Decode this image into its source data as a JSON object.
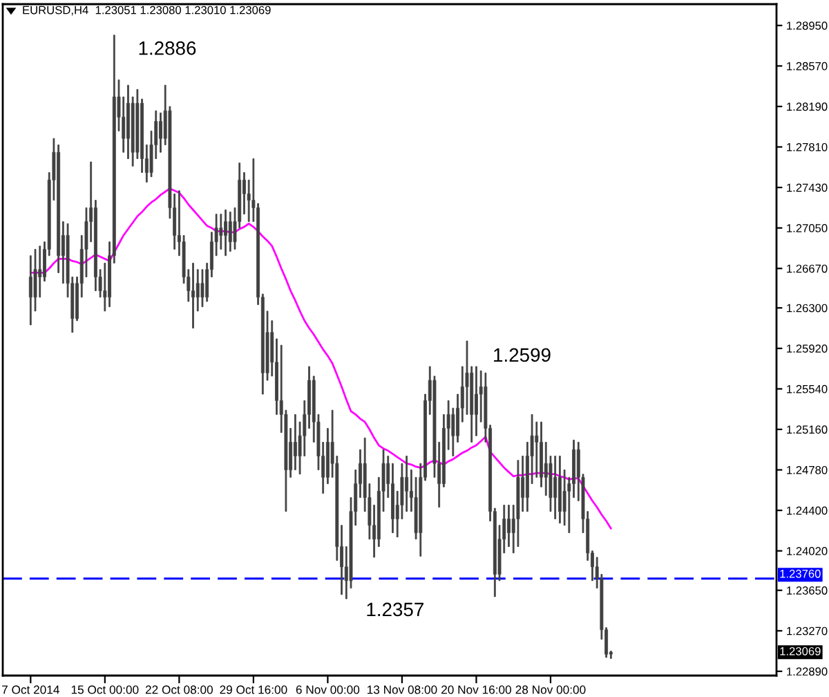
{
  "chart_data": {
    "type": "candlestick",
    "title": "EURUSD,H4  1.23051 1.23080 1.23010 1.23069",
    "color": "#404040",
    "categories": [
      "7 Oct 2014",
      null,
      null,
      null,
      null,
      null,
      null,
      null,
      null,
      null,
      null,
      null,
      null,
      null,
      null,
      null,
      "15 Oct 00:00",
      null,
      null,
      null,
      null,
      null,
      null,
      null,
      null,
      null,
      null,
      null,
      null,
      null,
      null,
      null,
      "22 Oct 08:00",
      null,
      null,
      null,
      null,
      null,
      null,
      null,
      null,
      null,
      null,
      null,
      null,
      null,
      null,
      null,
      "29 Oct 16:00",
      null,
      null,
      null,
      null,
      null,
      null,
      null,
      null,
      null,
      null,
      null,
      null,
      null,
      null,
      null,
      "6 Nov 00:00",
      null,
      null,
      null,
      null,
      null,
      null,
      null,
      null,
      null,
      null,
      null,
      null,
      null,
      null,
      null,
      "13 Nov 08:00",
      null,
      null,
      null,
      null,
      null,
      null,
      null,
      null,
      null,
      null,
      null,
      null,
      null,
      null,
      null,
      "20 Nov 16:00",
      null,
      null,
      null,
      null,
      null,
      null,
      null,
      null,
      null,
      null,
      null,
      null,
      null,
      null,
      null,
      "28 Nov 00:00",
      null,
      null,
      null,
      null,
      null,
      null,
      null,
      null,
      null,
      null,
      null,
      null,
      null
    ],
    "ohlc": [
      [
        1.2659,
        1.2679,
        1.2614,
        1.264
      ],
      [
        1.264,
        1.2685,
        1.2627,
        1.2666
      ],
      [
        1.2666,
        1.2688,
        1.264,
        1.2659
      ],
      [
        1.2659,
        1.2692,
        1.2655,
        1.2685
      ],
      [
        1.2685,
        1.2757,
        1.2679,
        1.275
      ],
      [
        1.275,
        1.2789,
        1.2731,
        1.2776
      ],
      [
        1.2776,
        1.2783,
        1.2663,
        1.2679
      ],
      [
        1.2679,
        1.2711,
        1.2653,
        1.2698
      ],
      [
        1.2698,
        1.2709,
        1.264,
        1.2653
      ],
      [
        1.2653,
        1.2659,
        1.2607,
        1.262
      ],
      [
        1.262,
        1.2659,
        1.2618,
        1.2653
      ],
      [
        1.2653,
        1.2698,
        1.264,
        1.2685
      ],
      [
        1.2685,
        1.2724,
        1.2659,
        1.2711
      ],
      [
        1.2711,
        1.2767,
        1.2692,
        1.2724
      ],
      [
        1.2724,
        1.2731,
        1.2646,
        1.2659
      ],
      [
        1.2659,
        1.2666,
        1.264,
        1.2646
      ],
      [
        1.2646,
        1.2672,
        1.2627,
        1.264
      ],
      [
        1.264,
        1.2692,
        1.2631,
        1.2679
      ],
      [
        1.2679,
        1.2886,
        1.2672,
        1.2828
      ],
      [
        1.2828,
        1.2844,
        1.2796,
        1.2809
      ],
      [
        1.2809,
        1.2828,
        1.2776,
        1.2789
      ],
      [
        1.2789,
        1.2839,
        1.277,
        1.2822
      ],
      [
        1.2822,
        1.2828,
        1.2763,
        1.2776
      ],
      [
        1.2776,
        1.2835,
        1.277,
        1.2822
      ],
      [
        1.2822,
        1.2826,
        1.2757,
        1.277
      ],
      [
        1.277,
        1.2783,
        1.2748,
        1.2757
      ],
      [
        1.2757,
        1.2796,
        1.2753,
        1.2783
      ],
      [
        1.2783,
        1.2815,
        1.277,
        1.2805
      ],
      [
        1.2805,
        1.2813,
        1.2776,
        1.2789
      ],
      [
        1.2789,
        1.2839,
        1.2783,
        1.2815
      ],
      [
        1.2815,
        1.2819,
        1.2714,
        1.2724
      ],
      [
        1.2724,
        1.2737,
        1.2685,
        1.2698
      ],
      [
        1.2698,
        1.274,
        1.2679,
        1.2692
      ],
      [
        1.2692,
        1.2698,
        1.2653,
        1.2659
      ],
      [
        1.2659,
        1.2666,
        1.2636,
        1.2646
      ],
      [
        1.2646,
        1.2672,
        1.2611,
        1.264
      ],
      [
        1.264,
        1.2666,
        1.2627,
        1.2653
      ],
      [
        1.2653,
        1.2666,
        1.2631,
        1.264
      ],
      [
        1.264,
        1.2672,
        1.2636,
        1.2666
      ],
      [
        1.2666,
        1.2701,
        1.2659,
        1.2692
      ],
      [
        1.2692,
        1.2718,
        1.2679,
        1.2705
      ],
      [
        1.2705,
        1.2718,
        1.2685,
        1.2698
      ],
      [
        1.2698,
        1.2722,
        1.2679,
        1.2711
      ],
      [
        1.2711,
        1.272,
        1.2683,
        1.2692
      ],
      [
        1.2692,
        1.2724,
        1.2685,
        1.2711
      ],
      [
        1.2711,
        1.2766,
        1.2705,
        1.275
      ],
      [
        1.275,
        1.2757,
        1.2718,
        1.2737
      ],
      [
        1.2737,
        1.275,
        1.2711,
        1.2731
      ],
      [
        1.2731,
        1.277,
        1.2711,
        1.2724
      ],
      [
        1.2724,
        1.2728,
        1.2633,
        1.264
      ],
      [
        1.264,
        1.2643,
        1.2549,
        1.2569
      ],
      [
        1.2569,
        1.2627,
        1.2562,
        1.2607
      ],
      [
        1.2607,
        1.2618,
        1.2566,
        1.2579
      ],
      [
        1.2579,
        1.2601,
        1.253,
        1.2543
      ],
      [
        1.2543,
        1.2595,
        1.2513,
        1.253
      ],
      [
        1.253,
        1.2534,
        1.2439,
        1.2478
      ],
      [
        1.2478,
        1.2517,
        1.2471,
        1.2504
      ],
      [
        1.2504,
        1.253,
        1.2478,
        1.2491
      ],
      [
        1.2491,
        1.2523,
        1.2474,
        1.251
      ],
      [
        1.251,
        1.2543,
        1.2491,
        1.253
      ],
      [
        1.253,
        1.2575,
        1.2517,
        1.2562
      ],
      [
        1.2562,
        1.2566,
        1.2504,
        1.2523
      ],
      [
        1.2523,
        1.253,
        1.2478,
        1.2491
      ],
      [
        1.2491,
        1.2504,
        1.2456,
        1.2471
      ],
      [
        1.2471,
        1.2517,
        1.2465,
        1.2504
      ],
      [
        1.2504,
        1.2534,
        1.2471,
        1.2484
      ],
      [
        1.2484,
        1.2491,
        1.2393,
        1.2406
      ],
      [
        1.2406,
        1.2426,
        1.2361,
        1.2387
      ],
      [
        1.2387,
        1.2406,
        1.2357,
        1.2374
      ],
      [
        1.2374,
        1.2452,
        1.2367,
        1.2439
      ],
      [
        1.2439,
        1.2478,
        1.2426,
        1.2465
      ],
      [
        1.2465,
        1.2497,
        1.2452,
        1.2484
      ],
      [
        1.2484,
        1.2508,
        1.2439,
        1.2452
      ],
      [
        1.2452,
        1.2465,
        1.2413,
        1.2426
      ],
      [
        1.2426,
        1.2445,
        1.2396,
        1.2413
      ],
      [
        1.2413,
        1.2471,
        1.2406,
        1.2458
      ],
      [
        1.2458,
        1.2497,
        1.2439,
        1.2484
      ],
      [
        1.2484,
        1.2491,
        1.2452,
        1.2465
      ],
      [
        1.2465,
        1.2484,
        1.2419,
        1.2432
      ],
      [
        1.2432,
        1.2458,
        1.2415,
        1.2445
      ],
      [
        1.2445,
        1.2484,
        1.2432,
        1.2471
      ],
      [
        1.2471,
        1.2491,
        1.2439,
        1.2458
      ],
      [
        1.2458,
        1.2478,
        1.2439,
        1.2452
      ],
      [
        1.2452,
        1.2471,
        1.2413,
        1.2419
      ],
      [
        1.2419,
        1.2484,
        1.2397,
        1.2471
      ],
      [
        1.2471,
        1.2549,
        1.2468,
        1.2543
      ],
      [
        1.2543,
        1.2575,
        1.253,
        1.2562
      ],
      [
        1.2562,
        1.2566,
        1.2471,
        1.2484
      ],
      [
        1.2484,
        1.2504,
        1.2443,
        1.2465
      ],
      [
        1.2465,
        1.253,
        1.2462,
        1.2517
      ],
      [
        1.2517,
        1.2543,
        1.2497,
        1.253
      ],
      [
        1.253,
        1.2536,
        1.2491,
        1.251
      ],
      [
        1.251,
        1.2549,
        1.2504,
        1.2536
      ],
      [
        1.2536,
        1.2575,
        1.2523,
        1.2556
      ],
      [
        1.2556,
        1.2599,
        1.253,
        1.2569
      ],
      [
        1.2569,
        1.2575,
        1.2504,
        1.253
      ],
      [
        1.253,
        1.2575,
        1.251,
        1.2549
      ],
      [
        1.2549,
        1.2571,
        1.2523,
        1.2556
      ],
      [
        1.2556,
        1.2569,
        1.2504,
        1.2517
      ],
      [
        1.2517,
        1.252,
        1.243,
        1.2439
      ],
      [
        1.2439,
        1.2442,
        1.2359,
        1.238
      ],
      [
        1.238,
        1.2426,
        1.2374,
        1.2413
      ],
      [
        1.2413,
        1.2445,
        1.24,
        1.2432
      ],
      [
        1.2432,
        1.2445,
        1.2406,
        1.2419
      ],
      [
        1.2419,
        1.2445,
        1.24,
        1.2432
      ],
      [
        1.2432,
        1.2487,
        1.2406,
        1.2471
      ],
      [
        1.2471,
        1.2491,
        1.2439,
        1.2452
      ],
      [
        1.2452,
        1.2504,
        1.2439,
        1.2491
      ],
      [
        1.2491,
        1.253,
        1.2465,
        1.251
      ],
      [
        1.251,
        1.2523,
        1.2471,
        1.2504
      ],
      [
        1.2504,
        1.2523,
        1.2462,
        1.2471
      ],
      [
        1.2471,
        1.2504,
        1.2454,
        1.2484
      ],
      [
        1.2484,
        1.2491,
        1.2439,
        1.2452
      ],
      [
        1.2452,
        1.2491,
        1.2432,
        1.2471
      ],
      [
        1.2471,
        1.2491,
        1.2428,
        1.2439
      ],
      [
        1.2439,
        1.2478,
        1.2426,
        1.2458
      ],
      [
        1.2458,
        1.2471,
        1.2419,
        1.2465
      ],
      [
        1.2465,
        1.2506,
        1.2452,
        1.2497
      ],
      [
        1.2497,
        1.2504,
        1.2449,
        1.2471
      ],
      [
        1.2471,
        1.2474,
        1.2419,
        1.2432
      ],
      [
        1.2432,
        1.2439,
        1.2393,
        1.24
      ],
      [
        1.24,
        1.2402,
        1.2374,
        1.2387
      ],
      [
        1.2387,
        1.2396,
        1.2367,
        1.2376
      ],
      [
        1.2376,
        1.238,
        1.2319,
        1.2328
      ],
      [
        1.2328,
        1.233,
        1.2302,
        1.2305
      ],
      [
        1.23051,
        1.2308,
        1.2301,
        1.23069
      ]
    ],
    "series": [
      {
        "type": "line",
        "color": "#ff00ff",
        "values": [
          1.2663,
          1.2663,
          1.2663,
          1.2663,
          1.2667,
          1.2672,
          1.2676,
          1.2676,
          1.2676,
          1.2674,
          1.2673,
          1.2671,
          1.2674,
          1.2677,
          1.268,
          1.2678,
          1.2676,
          1.2674,
          1.2682,
          1.269,
          1.2698,
          1.2704,
          1.271,
          1.2716,
          1.272,
          1.2725,
          1.2729,
          1.2732,
          1.2736,
          1.2739,
          1.2742,
          1.274,
          1.2738,
          1.2733,
          1.2727,
          1.2722,
          1.2717,
          1.2712,
          1.2707,
          1.2705,
          1.2702,
          1.2702,
          1.2702,
          1.2701,
          1.2701,
          1.2704,
          1.2706,
          1.2709,
          1.2706,
          1.2702,
          1.2697,
          1.2693,
          1.2688,
          1.2678,
          1.2667,
          1.2657,
          1.2646,
          1.2637,
          1.2627,
          1.2618,
          1.2611,
          1.2605,
          1.2598,
          1.2591,
          1.2585,
          1.2578,
          1.2567,
          1.2556,
          1.2544,
          1.2533,
          1.253,
          1.2526,
          1.2523,
          1.2516,
          1.2508,
          1.2501,
          1.2498,
          1.2496,
          1.2493,
          1.249,
          1.2487,
          1.2484,
          1.2483,
          1.2481,
          1.248,
          1.2482,
          1.2485,
          1.2487,
          1.2485,
          1.2483,
          1.2486,
          1.2488,
          1.2491,
          1.2494,
          1.2496,
          1.2499,
          1.2501,
          1.2505,
          1.2509,
          1.2495,
          1.249,
          1.2485,
          1.248,
          1.2476,
          1.2472,
          1.2473,
          1.2473,
          1.2474,
          1.2474,
          1.2475,
          1.2475,
          1.2475,
          1.2474,
          1.2474,
          1.2472,
          1.2471,
          1.2469,
          1.247,
          1.247,
          1.2463,
          1.2456,
          1.2449,
          1.2443,
          1.2436,
          1.243,
          1.2423
        ]
      }
    ],
    "ylim": [
      1.2285,
      1.2915
    ],
    "yticks": [
      {
        "value": 1.2895,
        "label": "1.28950"
      },
      {
        "value": 1.2857,
        "label": "1.28570"
      },
      {
        "value": 1.2819,
        "label": "1.28190"
      },
      {
        "value": 1.2781,
        "label": "1.27810"
      },
      {
        "value": 1.2743,
        "label": "1.27430"
      },
      {
        "value": 1.2705,
        "label": "1.27050"
      },
      {
        "value": 1.2667,
        "label": "1.26670"
      },
      {
        "value": 1.263,
        "label": "1.26300"
      },
      {
        "value": 1.2592,
        "label": "1.25920"
      },
      {
        "value": 1.2554,
        "label": "1.25540"
      },
      {
        "value": 1.2516,
        "label": "1.25160"
      },
      {
        "value": 1.2478,
        "label": "1.24780"
      },
      {
        "value": 1.244,
        "label": "1.24400"
      },
      {
        "value": 1.2402,
        "label": "1.24020"
      },
      {
        "value": 1.2365,
        "label": "1.23650"
      },
      {
        "value": 1.2327,
        "label": "1.23270"
      },
      {
        "value": 1.2289,
        "label": "1.22890"
      }
    ],
    "ref_lines": [
      {
        "axis": "y",
        "value": 1.2376,
        "label": "1.23760",
        "color": "#0000ff",
        "line_style": "dashed"
      }
    ],
    "annotations": [
      "1.2886",
      "1.2599",
      "1.2357",
      "1.23069"
    ]
  }
}
